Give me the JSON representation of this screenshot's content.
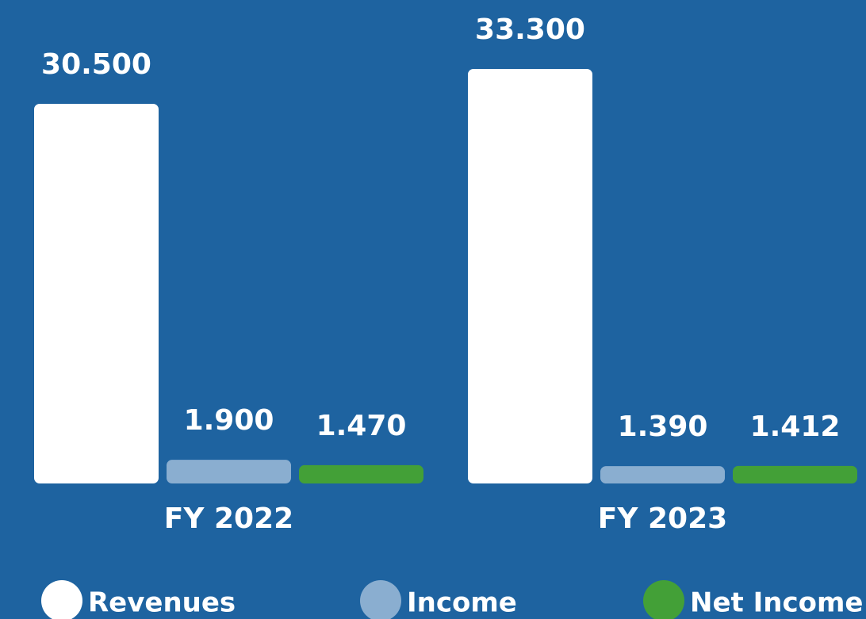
{
  "chart_data": {
    "type": "bar",
    "categories": [
      "FY 2022",
      "FY 2023"
    ],
    "series": [
      {
        "name": "Revenues",
        "color": "#ffffff",
        "values": [
          30.5,
          33.3
        ],
        "value_labels": [
          "30.500",
          "33.300"
        ]
      },
      {
        "name": "Income",
        "color": "#8aaed0",
        "values": [
          1.9,
          1.39
        ],
        "value_labels": [
          "1.900",
          "1.390"
        ]
      },
      {
        "name": "Net Income",
        "color": "#43a037",
        "values": [
          1.47,
          1.412
        ],
        "value_labels": [
          "1.470",
          "1.412"
        ]
      }
    ]
  }
}
